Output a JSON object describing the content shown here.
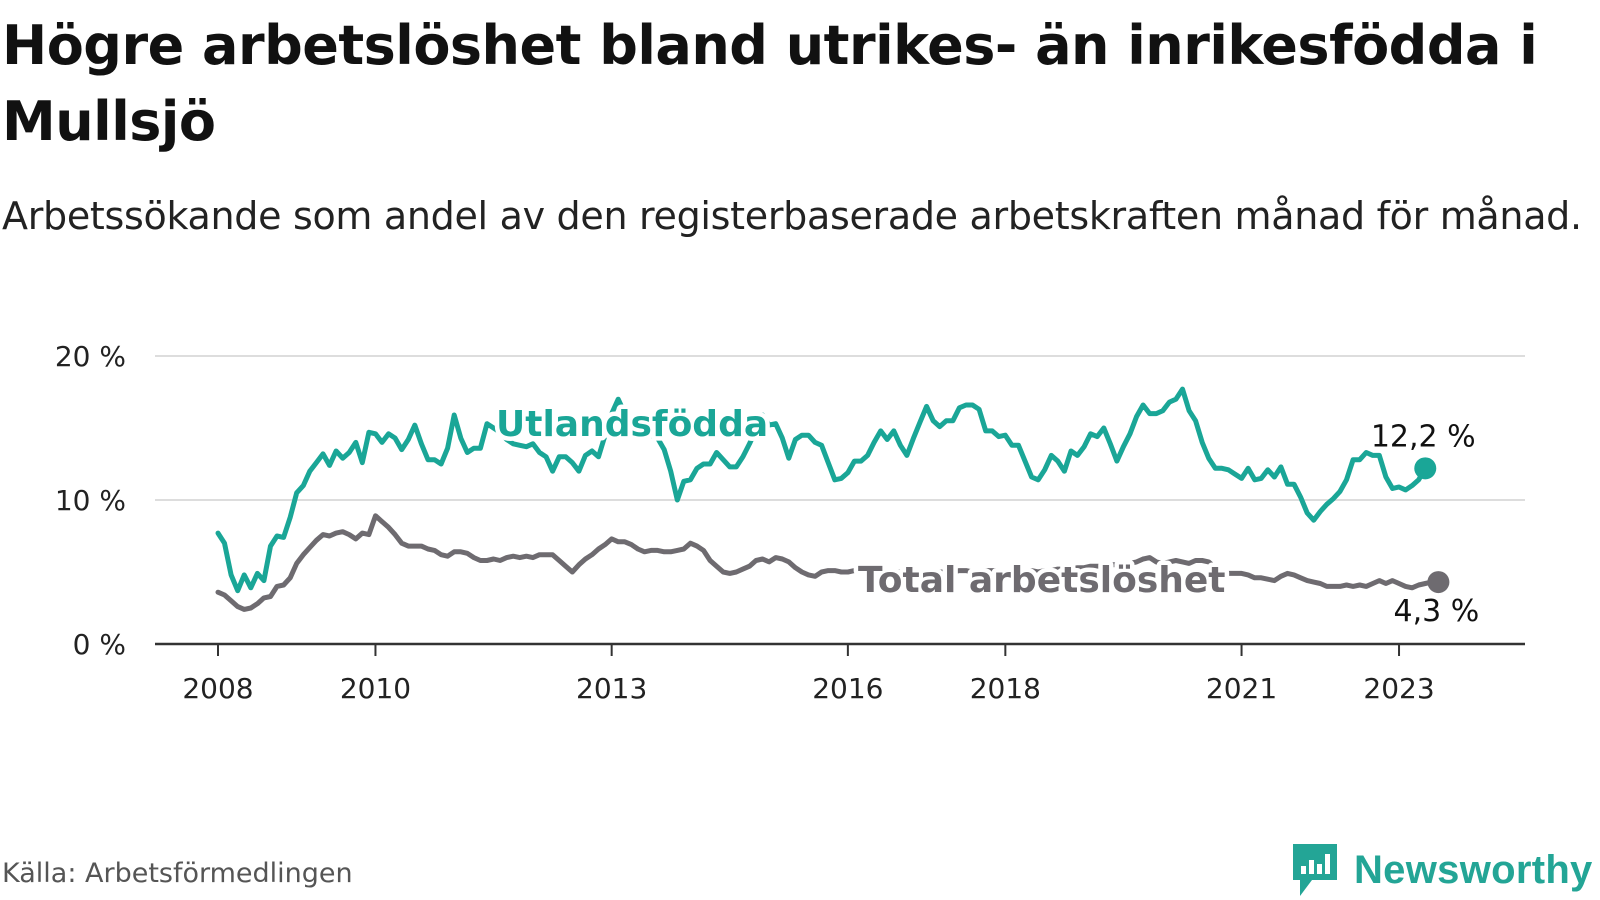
{
  "title": "Högre arbetslöshet bland utrikes- än inrikesfödda i Mullsjö",
  "subtitle": "Arbetssökande som andel av den registerbaserade arbetskraften månad för månad.",
  "source": "Källa: Arbetsförmedlingen",
  "brand": "Newsworthy",
  "colors": {
    "foreign": "#1aa697",
    "total": "#6e6b70",
    "grid": "#dddddd",
    "axis": "#333333"
  },
  "chart_data": {
    "type": "line",
    "x_start": 2008.0,
    "x_step": 0.0833333,
    "xlim": [
      2007.2,
      2024.6
    ],
    "ylim": [
      0,
      20
    ],
    "y_ticks": [
      0,
      10,
      20
    ],
    "y_tick_labels": [
      "0 %",
      "10 %",
      "20 %"
    ],
    "x_ticks": [
      2008,
      2010,
      2013,
      2016,
      2018,
      2021,
      2023
    ],
    "x_tick_labels": [
      "2008",
      "2010",
      "2013",
      "2016",
      "2018",
      "2021",
      "2023"
    ],
    "grid": true,
    "series": [
      {
        "name": "Utlandsfödda",
        "end_label": "12,2 %",
        "values": [
          7.7,
          7.0,
          4.8,
          3.7,
          4.8,
          3.9,
          4.9,
          4.4,
          6.8,
          7.5,
          7.4,
          8.8,
          10.5,
          11.0,
          12.0,
          12.6,
          13.2,
          12.4,
          13.4,
          12.9,
          13.3,
          14.0,
          12.6,
          14.7,
          14.6,
          14.0,
          14.6,
          14.3,
          13.5,
          14.2,
          15.2,
          13.9,
          12.8,
          12.8,
          12.5,
          13.6,
          15.9,
          14.3,
          13.3,
          13.6,
          13.6,
          15.3,
          15.0,
          14.7,
          14.2,
          13.9,
          13.8,
          13.7,
          13.9,
          13.3,
          13.0,
          12.0,
          13.0,
          13.0,
          12.6,
          12.0,
          13.1,
          13.4,
          13.0,
          14.5,
          16.0,
          17.0,
          16.0,
          15.3,
          15.2,
          14.9,
          14.5,
          14.3,
          13.5,
          12.0,
          10.0,
          11.3,
          11.4,
          12.2,
          12.5,
          12.5,
          13.3,
          12.8,
          12.3,
          12.3,
          13.0,
          13.9,
          14.9,
          15.9,
          15.2,
          15.3,
          14.3,
          12.9,
          14.2,
          14.5,
          14.5,
          14.0,
          13.8,
          12.6,
          11.4,
          11.5,
          11.9,
          12.7,
          12.7,
          13.1,
          14.0,
          14.8,
          14.2,
          14.8,
          13.8,
          13.1,
          14.3,
          15.4,
          16.5,
          15.5,
          15.1,
          15.5,
          15.5,
          16.4,
          16.6,
          16.6,
          16.3,
          14.8,
          14.8,
          14.4,
          14.5,
          13.8,
          13.8,
          12.7,
          11.6,
          11.4,
          12.1,
          13.1,
          12.7,
          12.0,
          13.4,
          13.1,
          13.7,
          14.6,
          14.4,
          15.0,
          13.9,
          12.7,
          13.7,
          14.6,
          15.8,
          16.6,
          16.0,
          16.0,
          16.2,
          16.8,
          17.0,
          17.7,
          16.2,
          15.5,
          14.0,
          12.9,
          12.2,
          12.2,
          12.1,
          11.8,
          11.5,
          12.2,
          11.4,
          11.5,
          12.1,
          11.6,
          12.3,
          11.1,
          11.1,
          10.2,
          9.1,
          8.6,
          9.2,
          9.7,
          10.1,
          10.6,
          11.4,
          12.8,
          12.8,
          13.3,
          13.1,
          13.1,
          11.6,
          10.8,
          10.9,
          10.7,
          11.0,
          11.4,
          12.2
        ]
      },
      {
        "name": "Total arbetslöshet",
        "end_label": "4,3 %",
        "values": [
          3.6,
          3.4,
          3.0,
          2.6,
          2.4,
          2.5,
          2.8,
          3.2,
          3.3,
          4.0,
          4.1,
          4.6,
          5.6,
          6.2,
          6.7,
          7.2,
          7.6,
          7.5,
          7.7,
          7.8,
          7.6,
          7.3,
          7.7,
          7.6,
          8.9,
          8.5,
          8.1,
          7.6,
          7.0,
          6.8,
          6.8,
          6.8,
          6.6,
          6.5,
          6.2,
          6.1,
          6.4,
          6.4,
          6.3,
          6.0,
          5.8,
          5.8,
          5.9,
          5.8,
          6.0,
          6.1,
          6.0,
          6.1,
          6.0,
          6.2,
          6.2,
          6.2,
          5.8,
          5.4,
          5.0,
          5.5,
          5.9,
          6.2,
          6.6,
          6.9,
          7.3,
          7.1,
          7.1,
          6.9,
          6.6,
          6.4,
          6.5,
          6.5,
          6.4,
          6.4,
          6.5,
          6.6,
          7.0,
          6.8,
          6.5,
          5.8,
          5.4,
          5.0,
          4.9,
          5.0,
          5.2,
          5.4,
          5.8,
          5.9,
          5.7,
          6.0,
          5.9,
          5.7,
          5.3,
          5.0,
          4.8,
          4.7,
          5.0,
          5.1,
          5.1,
          5.0,
          5.0,
          5.1,
          5.2,
          5.1,
          5.1,
          5.0,
          5.1,
          5.0,
          5.0,
          5.1,
          5.0,
          4.9,
          5.0,
          5.1,
          5.0,
          5.0,
          5.0,
          5.1,
          5.1,
          5.0,
          5.0,
          5.1,
          5.1,
          5.1,
          5.0,
          5.0,
          5.0,
          5.1,
          5.1,
          5.0,
          5.1,
          5.1,
          5.2,
          5.2,
          5.2,
          5.3,
          5.3,
          5.4,
          5.4,
          5.4,
          5.5,
          5.5,
          5.6,
          5.6,
          5.7,
          5.9,
          6.0,
          5.7,
          5.6,
          5.7,
          5.8,
          5.7,
          5.6,
          5.8,
          5.8,
          5.7,
          5.3,
          5.1,
          4.9,
          4.9,
          4.9,
          4.8,
          4.6,
          4.6,
          4.5,
          4.4,
          4.7,
          4.9,
          4.8,
          4.6,
          4.4,
          4.3,
          4.2,
          4.0,
          4.0,
          4.0,
          4.1,
          4.0,
          4.1,
          4.0,
          4.2,
          4.4,
          4.2,
          4.4,
          4.2,
          4.0,
          3.9,
          4.1,
          4.2,
          4.3,
          4.3
        ]
      }
    ]
  }
}
